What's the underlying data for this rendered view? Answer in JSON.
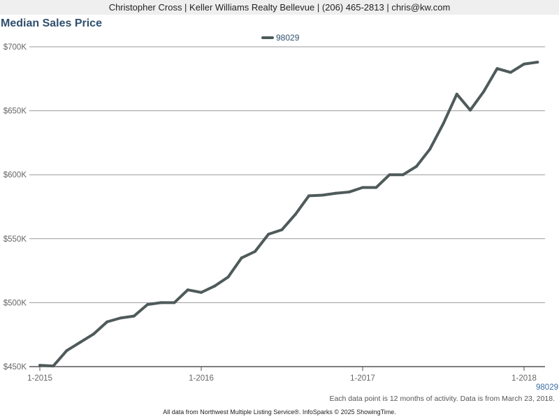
{
  "header": {
    "contact_line": "Christopher Cross | Keller Williams Realty Bellevue | (206) 465-2813 | chris@kw.com"
  },
  "footer": {
    "note": "Each data point is 12 months of activity. Data is from March 23, 2018.",
    "source": "All data from Northwest Multiple Listing Service®. InfoSparks © 2025 ShowingTime."
  },
  "colors": {
    "series": "#4f5a5a",
    "title": "#2f4f6d",
    "endlabel": "#3b6ea5",
    "grid": "#9a9a9a"
  },
  "chart_data": {
    "type": "line",
    "title": "Median Sales Price",
    "xlabel": "",
    "ylabel": "",
    "grid": true,
    "legend_position": "top-center",
    "ylim": [
      450000,
      700000
    ],
    "xlim": [
      "2015-01",
      "2018-02"
    ],
    "y_ticks": [
      {
        "value": 450000,
        "label": "$450K"
      },
      {
        "value": 500000,
        "label": "$500K"
      },
      {
        "value": 550000,
        "label": "$550K"
      },
      {
        "value": 600000,
        "label": "$600K"
      },
      {
        "value": 650000,
        "label": "$650K"
      },
      {
        "value": 700000,
        "label": "$700K"
      }
    ],
    "x_ticks": [
      {
        "value": "2015-01",
        "label": "1-2015"
      },
      {
        "value": "2016-01",
        "label": "1-2016"
      },
      {
        "value": "2017-01",
        "label": "1-2017"
      },
      {
        "value": "2018-01",
        "label": "1-2018"
      }
    ],
    "x": [
      "2015-01",
      "2015-02",
      "2015-03",
      "2015-04",
      "2015-05",
      "2015-06",
      "2015-07",
      "2015-08",
      "2015-09",
      "2015-10",
      "2015-11",
      "2015-12",
      "2016-01",
      "2016-02",
      "2016-03",
      "2016-04",
      "2016-05",
      "2016-06",
      "2016-07",
      "2016-08",
      "2016-09",
      "2016-10",
      "2016-11",
      "2016-12",
      "2017-01",
      "2017-02",
      "2017-03",
      "2017-04",
      "2017-05",
      "2017-06",
      "2017-07",
      "2017-08",
      "2017-09",
      "2017-10",
      "2017-11",
      "2017-12",
      "2018-01",
      "2018-02"
    ],
    "series": [
      {
        "name": "98029",
        "end_label": "98029",
        "values": [
          451000,
          450500,
          462500,
          469000,
          475500,
          485000,
          488000,
          489500,
          498500,
          500000,
          500000,
          510000,
          508000,
          513000,
          520000,
          535000,
          540000,
          553500,
          557000,
          569000,
          583500,
          584000,
          585500,
          586500,
          590000,
          590000,
          600000,
          600000,
          606500,
          620000,
          640000,
          663000,
          650500,
          665000,
          683000,
          680000,
          686500,
          688000
        ]
      }
    ]
  }
}
